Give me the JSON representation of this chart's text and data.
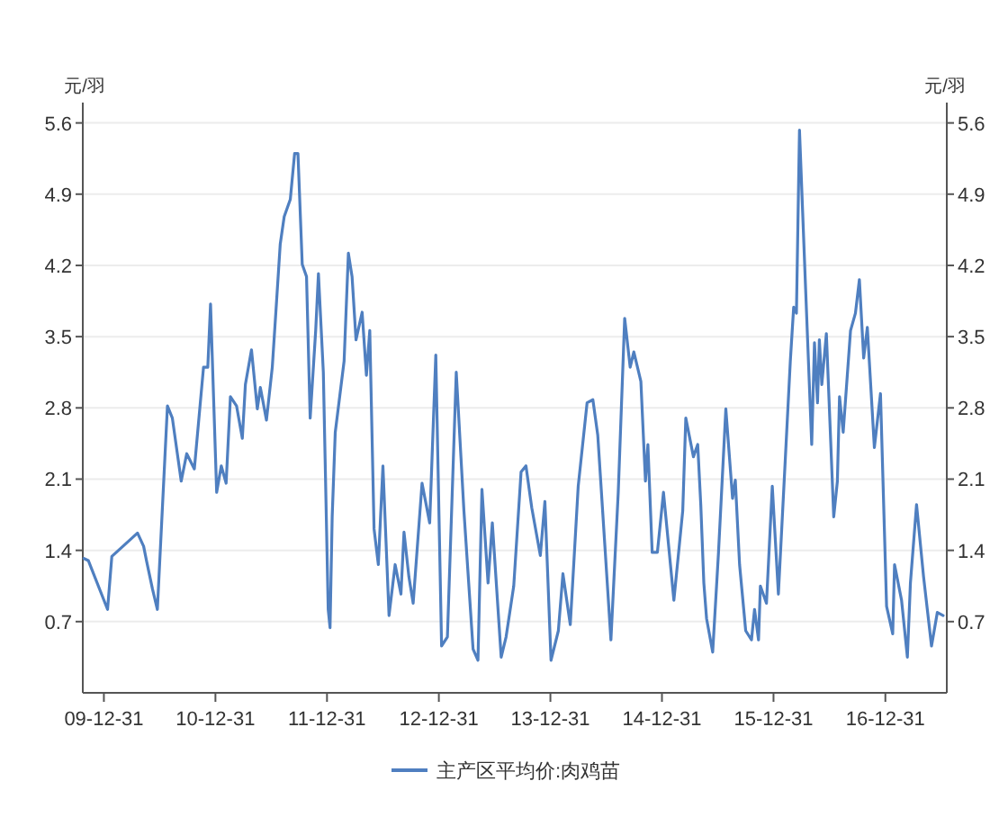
{
  "chart_data": {
    "type": "line",
    "ylabel": "元/羽",
    "y2label": "元/羽",
    "x": [
      "2009-10-27",
      "2009-11-10",
      "2010-01-12",
      "2010-01-26",
      "2010-04-20",
      "2010-05-10",
      "2010-05-20",
      "2010-06-08",
      "2010-06-24",
      "2010-07-27",
      "2010-08-12",
      "2010-09-10",
      "2010-09-28",
      "2010-10-23",
      "2010-11-22",
      "2010-12-06",
      "2010-12-15",
      "2011-01-04",
      "2011-01-19",
      "2011-02-04",
      "2011-02-18",
      "2011-03-10",
      "2011-03-29",
      "2011-04-08",
      "2011-04-28",
      "2011-05-17",
      "2011-05-27",
      "2011-06-16",
      "2011-07-05",
      "2011-07-19",
      "2011-07-31",
      "2011-08-13",
      "2011-09-02",
      "2011-09-16",
      "2011-09-27",
      "2011-10-11",
      "2011-10-25",
      "2011-11-06",
      "2011-11-24",
      "2011-12-03",
      "2011-12-19",
      "2012-01-04",
      "2012-01-10",
      "2012-01-17",
      "2012-01-27",
      "2012-02-25",
      "2012-03-10",
      "2012-03-22",
      "2012-04-04",
      "2012-04-24",
      "2012-05-08",
      "2012-05-19",
      "2012-06-02",
      "2012-06-16",
      "2012-07-01",
      "2012-07-21",
      "2012-08-10",
      "2012-08-29",
      "2012-09-08",
      "2012-09-24",
      "2012-10-08",
      "2012-11-06",
      "2012-12-01",
      "2012-12-21",
      "2013-01-09",
      "2013-01-28",
      "2013-02-26",
      "2013-03-23",
      "2013-04-22",
      "2013-05-08",
      "2013-05-21",
      "2013-06-10",
      "2013-06-24",
      "2013-07-23",
      "2013-08-08",
      "2013-09-02",
      "2013-09-26",
      "2013-10-12",
      "2013-10-31",
      "2013-11-28",
      "2013-12-13",
      "2014-01-02",
      "2014-01-26",
      "2014-02-10",
      "2014-03-06",
      "2014-04-01",
      "2014-04-30",
      "2014-05-19",
      "2014-06-04",
      "2014-07-17",
      "2014-08-10",
      "2014-08-31",
      "2014-09-18",
      "2014-09-30",
      "2014-10-23",
      "2014-11-07",
      "2014-11-15",
      "2014-11-29",
      "2014-12-16",
      "2015-01-05",
      "2015-02-08",
      "2015-03-09",
      "2015-03-19",
      "2015-04-13",
      "2015-04-27",
      "2015-05-07",
      "2015-05-17",
      "2015-05-26",
      "2015-06-15",
      "2015-07-04",
      "2015-07-28",
      "2015-08-19",
      "2015-08-28",
      "2015-09-11",
      "2015-10-01",
      "2015-10-20",
      "2015-10-30",
      "2015-11-12",
      "2015-11-18",
      "2015-12-08",
      "2015-12-27",
      "2016-01-16",
      "2016-02-24",
      "2016-03-06",
      "2016-03-15",
      "2016-03-25",
      "2016-04-14",
      "2016-05-04",
      "2016-05-13",
      "2016-05-23",
      "2016-05-29",
      "2016-06-06",
      "2016-06-21",
      "2016-07-15",
      "2016-07-27",
      "2016-08-03",
      "2016-08-15",
      "2016-09-08",
      "2016-09-24",
      "2016-10-07",
      "2016-10-21",
      "2016-11-02",
      "2016-11-25",
      "2016-12-15",
      "2017-01-04",
      "2017-01-24",
      "2017-01-30",
      "2017-02-22",
      "2017-03-13",
      "2017-03-23",
      "2017-04-12",
      "2017-05-05",
      "2017-05-31",
      "2017-06-19",
      "2017-07-08"
    ],
    "series": [
      {
        "name": "主产区平均价:肉鸡苗",
        "color": "#4f7fc0",
        "values": [
          1.32,
          1.3,
          0.82,
          1.34,
          1.57,
          1.44,
          1.29,
          1.02,
          0.82,
          2.82,
          2.7,
          2.08,
          2.35,
          2.2,
          3.2,
          3.2,
          3.82,
          1.97,
          2.23,
          2.06,
          2.91,
          2.82,
          2.5,
          3.03,
          3.37,
          2.79,
          3.0,
          2.68,
          3.2,
          3.85,
          4.41,
          4.68,
          4.85,
          5.3,
          5.3,
          4.21,
          4.09,
          2.7,
          3.56,
          4.12,
          3.15,
          0.82,
          0.64,
          1.73,
          2.56,
          3.26,
          4.32,
          4.09,
          3.47,
          3.74,
          3.12,
          3.56,
          1.61,
          1.26,
          2.23,
          0.76,
          1.26,
          0.97,
          1.58,
          1.14,
          0.88,
          2.06,
          1.67,
          3.32,
          0.46,
          0.55,
          3.15,
          1.79,
          0.43,
          0.32,
          2.0,
          1.08,
          1.67,
          0.35,
          0.55,
          1.05,
          2.17,
          2.23,
          1.82,
          1.35,
          1.88,
          0.32,
          0.61,
          1.17,
          0.67,
          2.03,
          2.85,
          2.88,
          2.53,
          0.52,
          1.97,
          3.68,
          3.2,
          3.35,
          3.06,
          2.08,
          2.44,
          1.38,
          1.38,
          1.97,
          0.91,
          1.79,
          2.7,
          2.32,
          2.44,
          1.85,
          1.08,
          0.73,
          0.4,
          1.38,
          2.79,
          1.91,
          2.09,
          1.26,
          0.61,
          0.52,
          0.82,
          0.52,
          1.05,
          0.88,
          2.03,
          0.97,
          3.26,
          3.79,
          3.73,
          5.53,
          3.97,
          2.44,
          3.44,
          2.85,
          3.47,
          3.03,
          3.53,
          1.73,
          2.08,
          2.91,
          2.56,
          3.56,
          3.73,
          4.06,
          3.29,
          3.59,
          2.41,
          2.94,
          0.85,
          0.58,
          1.26,
          0.91,
          0.35,
          1.08,
          1.85,
          1.14,
          0.46,
          0.79,
          0.76
        ]
      }
    ],
    "xlim": [
      "2009-10-23",
      "2017-07-20"
    ],
    "xticks": [
      {
        "value": "2009-12-31",
        "label": "09-12-31"
      },
      {
        "value": "2010-12-31",
        "label": "10-12-31"
      },
      {
        "value": "2011-12-31",
        "label": "11-12-31"
      },
      {
        "value": "2012-12-31",
        "label": "12-12-31"
      },
      {
        "value": "2013-12-31",
        "label": "13-12-31"
      },
      {
        "value": "2014-12-31",
        "label": "14-12-31"
      },
      {
        "value": "2015-12-31",
        "label": "15-12-31"
      },
      {
        "value": "2016-12-31",
        "label": "16-12-31"
      }
    ],
    "ylim": [
      0,
      5.8
    ],
    "yticks": [
      0.7,
      1.4,
      2.1,
      2.8,
      3.5,
      4.2,
      4.9,
      5.6
    ],
    "y2lim": [
      0,
      5.8
    ],
    "y2ticks": [
      0.7,
      1.4,
      2.1,
      2.8,
      3.5,
      4.2,
      4.9,
      5.6
    ],
    "grid": "y",
    "legend": "bottom",
    "line_style": "solid"
  }
}
